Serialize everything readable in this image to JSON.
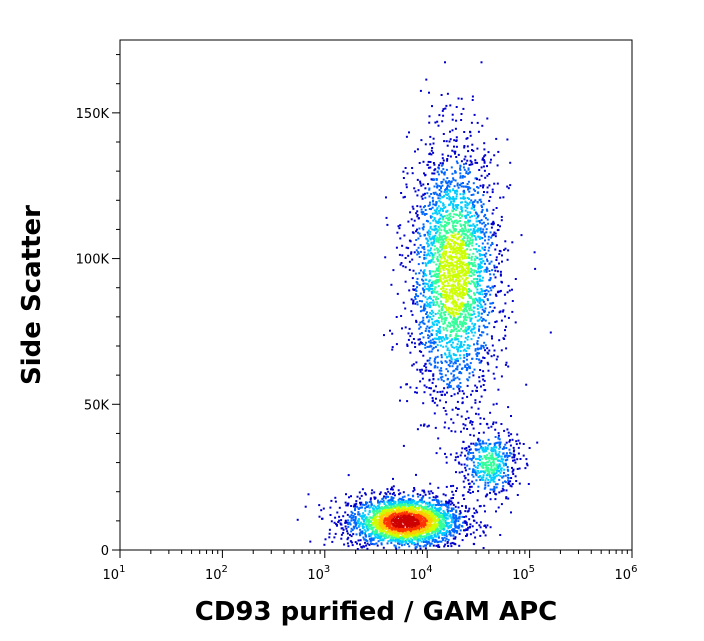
{
  "chart_data": {
    "type": "scatter",
    "title": "",
    "xlabel": "CD93 purified / GAM APC",
    "ylabel": "Side Scatter",
    "x_scale": "log",
    "xlim": [
      10,
      1000000
    ],
    "ylim": [
      0,
      175000
    ],
    "grid": false,
    "x_tick_labels": [
      {
        "base": "10",
        "exp": "1",
        "value": 10
      },
      {
        "base": "10",
        "exp": "2",
        "value": 100
      },
      {
        "base": "10",
        "exp": "3",
        "value": 1000
      },
      {
        "base": "10",
        "exp": "4",
        "value": 10000
      },
      {
        "base": "10",
        "exp": "5",
        "value": 100000
      },
      {
        "base": "10",
        "exp": "6",
        "value": 1000000
      }
    ],
    "y_tick_labels": [
      {
        "label": "0",
        "value": 0
      },
      {
        "label": "50K",
        "value": 50000
      },
      {
        "label": "100K",
        "value": 100000
      },
      {
        "label": "150K",
        "value": 150000
      }
    ],
    "density_colormap": [
      "#0000cc",
      "#0066ff",
      "#00ccff",
      "#33ff99",
      "#ccff00",
      "#ffcc00",
      "#ff3300",
      "#cc0000"
    ],
    "populations": [
      {
        "center_x": 6000,
        "center_y": 10000,
        "spread_log_x": 0.28,
        "spread_y": 4500,
        "points": 2600,
        "peak_density": "high"
      },
      {
        "center_x": 18000,
        "center_y": 95000,
        "spread_log_x": 0.22,
        "spread_y": 22000,
        "points": 2800,
        "peak_density": "medium"
      },
      {
        "center_x": 40000,
        "center_y": 30000,
        "spread_log_x": 0.14,
        "spread_y": 6000,
        "points": 500,
        "peak_density": "low"
      }
    ]
  }
}
